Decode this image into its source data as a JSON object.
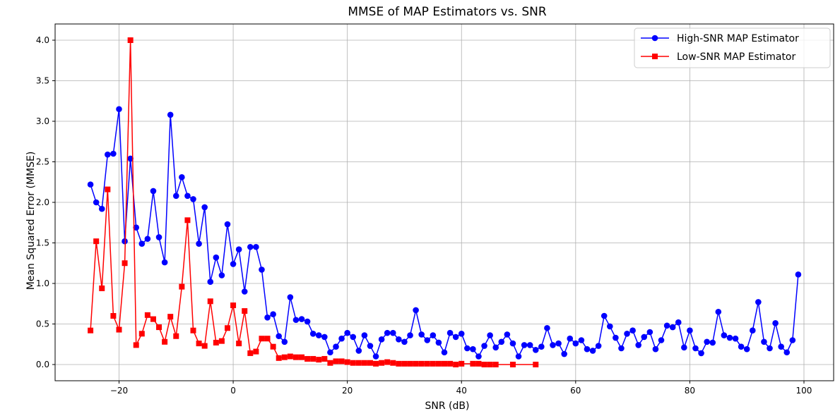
{
  "chart_data": {
    "type": "line",
    "title": "MMSE of MAP Estimators vs. SNR",
    "xlabel": "SNR (dB)",
    "ylabel": "Mean Squared Error (MMSE)",
    "xlim": [
      -31.2,
      105.2
    ],
    "ylim": [
      -0.2,
      4.2
    ],
    "xticks": [
      -20,
      0,
      20,
      40,
      60,
      80,
      100
    ],
    "yticks": [
      0.0,
      0.5,
      1.0,
      1.5,
      2.0,
      2.5,
      3.0,
      3.5,
      4.0
    ],
    "grid": true,
    "legend_position": "top-right",
    "series": [
      {
        "name": "High-SNR MAP Estimator",
        "color": "#0000ff",
        "marker": "circle",
        "x": [
          -25,
          -24,
          -23,
          -22,
          -21,
          -20,
          -19,
          -18,
          -17,
          -16,
          -15,
          -14,
          -13,
          -12,
          -11,
          -10,
          -9,
          -8,
          -7,
          -6,
          -5,
          -4,
          -3,
          -2,
          -1,
          0,
          1,
          2,
          3,
          4,
          5,
          6,
          7,
          8,
          9,
          10,
          11,
          12,
          13,
          14,
          15,
          16,
          17,
          18,
          19,
          20,
          21,
          22,
          23,
          24,
          25,
          26,
          27,
          28,
          29,
          30,
          31,
          32,
          33,
          34,
          35,
          36,
          37,
          38,
          39,
          40,
          41,
          42,
          43,
          44,
          45,
          46,
          47,
          48,
          49,
          50,
          51,
          52,
          53,
          54,
          55,
          56,
          57,
          58,
          59,
          60,
          61,
          62,
          63,
          64,
          65,
          66,
          67,
          68,
          69,
          70,
          71,
          72,
          73,
          74,
          75,
          76,
          77,
          78,
          79,
          80,
          81,
          82,
          83,
          84,
          85,
          86,
          87,
          88,
          89,
          90,
          91,
          92,
          93,
          94,
          95,
          96,
          97,
          98,
          99
        ],
        "y": [
          2.22,
          2.0,
          1.92,
          2.59,
          2.6,
          3.15,
          1.52,
          2.54,
          1.69,
          1.49,
          1.55,
          2.14,
          1.57,
          1.26,
          3.08,
          2.08,
          2.31,
          2.08,
          2.04,
          1.49,
          1.94,
          1.02,
          1.32,
          1.1,
          1.73,
          1.24,
          1.42,
          0.9,
          1.45,
          1.45,
          1.17,
          0.58,
          0.62,
          0.35,
          0.28,
          0.83,
          0.55,
          0.56,
          0.53,
          0.38,
          0.36,
          0.34,
          0.15,
          0.22,
          0.32,
          0.39,
          0.34,
          0.17,
          0.36,
          0.23,
          0.1,
          0.31,
          0.39,
          0.39,
          0.31,
          0.28,
          0.36,
          0.67,
          0.37,
          0.3,
          0.36,
          0.27,
          0.15,
          0.39,
          0.34,
          0.38,
          0.2,
          0.19,
          0.1,
          0.23,
          0.36,
          0.21,
          0.28,
          0.37,
          0.26,
          0.1,
          0.24,
          0.24,
          0.18,
          0.22,
          0.45,
          0.24,
          0.26,
          0.13,
          0.32,
          0.26,
          0.3,
          0.19,
          0.17,
          0.23,
          0.6,
          0.47,
          0.33,
          0.2,
          0.38,
          0.42,
          0.24,
          0.34,
          0.4,
          0.19,
          0.3,
          0.48,
          0.46,
          0.52,
          0.21,
          0.42,
          0.2,
          0.14,
          0.28,
          0.27,
          0.65,
          0.36,
          0.33,
          0.32,
          0.22,
          0.19,
          0.42,
          0.77,
          0.28,
          0.2,
          0.51,
          0.22,
          0.15,
          0.3,
          1.11
        ]
      },
      {
        "name": "Low-SNR MAP Estimator",
        "color": "#ff0000",
        "marker": "square",
        "x": [
          -25,
          -24,
          -23,
          -22,
          -21,
          -20,
          -19,
          -18,
          -17,
          -16,
          -15,
          -14,
          -13,
          -12,
          -11,
          -10,
          -9,
          -8,
          -7,
          -6,
          -5,
          -4,
          -3,
          -2,
          -1,
          0,
          1,
          2,
          3,
          4,
          5,
          6,
          7,
          8,
          9,
          10,
          11,
          12,
          13,
          14,
          15,
          16,
          17,
          18,
          19,
          20,
          21,
          22,
          23,
          24,
          25,
          26,
          27,
          28,
          29,
          30,
          31,
          32,
          33,
          34,
          35,
          36,
          37,
          38,
          39,
          40,
          42,
          43,
          44,
          45,
          46,
          49,
          53
        ],
        "y": [
          0.42,
          1.52,
          0.94,
          2.16,
          0.6,
          0.43,
          1.25,
          4.0,
          0.24,
          0.38,
          0.61,
          0.56,
          0.46,
          0.28,
          0.59,
          0.35,
          0.96,
          1.78,
          0.42,
          0.26,
          0.23,
          0.78,
          0.27,
          0.29,
          0.45,
          0.73,
          0.26,
          0.66,
          0.14,
          0.16,
          0.32,
          0.32,
          0.22,
          0.08,
          0.09,
          0.1,
          0.09,
          0.09,
          0.07,
          0.07,
          0.06,
          0.07,
          0.02,
          0.04,
          0.04,
          0.03,
          0.02,
          0.02,
          0.02,
          0.02,
          0.01,
          0.02,
          0.03,
          0.02,
          0.01,
          0.01,
          0.01,
          0.01,
          0.01,
          0.01,
          0.01,
          0.01,
          0.01,
          0.01,
          0.0,
          0.01,
          0.01,
          0.01,
          0.0,
          0.0,
          0.0,
          0.0,
          0.0
        ]
      }
    ]
  }
}
